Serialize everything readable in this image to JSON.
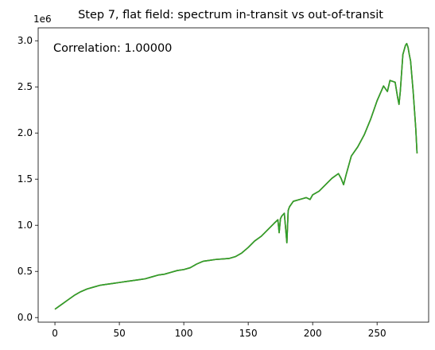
{
  "chart_data": {
    "type": "line",
    "title": "Step 7, flat field: spectrum in-transit vs out-of-transit",
    "xlabel": "",
    "ylabel": "",
    "y_offset_text": "1e6",
    "annotation": "Correlation: 1.00000",
    "xlim": [
      -13,
      290
    ],
    "ylim": [
      -0.05,
      3.14
    ],
    "x_ticks": [
      0,
      50,
      100,
      150,
      200,
      250
    ],
    "y_ticks": [
      0.0,
      0.5,
      1.0,
      1.5,
      2.0,
      2.5,
      3.0
    ],
    "x_tick_labels": [
      "0",
      "50",
      "100",
      "150",
      "200",
      "250"
    ],
    "y_tick_labels": [
      "0.0",
      "0.5",
      "1.0",
      "1.5",
      "2.0",
      "2.5",
      "3.0"
    ],
    "grid": false,
    "series": [
      {
        "color": "#1f77b4",
        "x": [
          0,
          5,
          10,
          15,
          20,
          25,
          30,
          35,
          40,
          45,
          50,
          55,
          60,
          65,
          70,
          75,
          80,
          85,
          90,
          95,
          100,
          105,
          110,
          115,
          120,
          125,
          130,
          135,
          140,
          145,
          150,
          155,
          160,
          165,
          170,
          173,
          174,
          175,
          176,
          178,
          180,
          181,
          182,
          185,
          190,
          195,
          198,
          200,
          205,
          210,
          215,
          220,
          222,
          224,
          226,
          228,
          230,
          235,
          240,
          245,
          250,
          255,
          258,
          260,
          262,
          264,
          266,
          267,
          268,
          270,
          272,
          273,
          274,
          275,
          276,
          278,
          280,
          281
        ],
        "y": [
          0.09,
          0.14,
          0.19,
          0.24,
          0.28,
          0.31,
          0.33,
          0.35,
          0.36,
          0.37,
          0.38,
          0.39,
          0.4,
          0.41,
          0.42,
          0.44,
          0.46,
          0.47,
          0.49,
          0.51,
          0.52,
          0.54,
          0.58,
          0.61,
          0.62,
          0.63,
          0.635,
          0.64,
          0.66,
          0.7,
          0.76,
          0.83,
          0.88,
          0.95,
          1.02,
          1.06,
          0.92,
          1.07,
          1.1,
          1.13,
          0.81,
          1.16,
          1.2,
          1.26,
          1.28,
          1.3,
          1.28,
          1.33,
          1.37,
          1.44,
          1.51,
          1.56,
          1.51,
          1.44,
          1.55,
          1.65,
          1.75,
          1.85,
          1.98,
          2.15,
          2.35,
          2.51,
          2.45,
          2.57,
          2.56,
          2.55,
          2.38,
          2.31,
          2.45,
          2.85,
          2.95,
          2.97,
          2.93,
          2.85,
          2.78,
          2.45,
          2.05,
          1.78
        ]
      },
      {
        "color": "#ff7f0e",
        "x": [
          0,
          5,
          10,
          15,
          20,
          25,
          30,
          35,
          40,
          45,
          50,
          55,
          60,
          65,
          70,
          75,
          80,
          85,
          90,
          95,
          100,
          105,
          110,
          115,
          120,
          125,
          130,
          135,
          140,
          145,
          150,
          155,
          160,
          165,
          170,
          173,
          174,
          175,
          176,
          178,
          180,
          181,
          182,
          185,
          190,
          195,
          198,
          200,
          205,
          210,
          215,
          220,
          222,
          224,
          226,
          228,
          230,
          235,
          240,
          245,
          250,
          255,
          258,
          260,
          262,
          264,
          266,
          267,
          268,
          270,
          272,
          273,
          274,
          275,
          276,
          278,
          280,
          281
        ],
        "y": [
          0.09,
          0.14,
          0.19,
          0.24,
          0.28,
          0.31,
          0.33,
          0.35,
          0.36,
          0.37,
          0.38,
          0.39,
          0.4,
          0.41,
          0.42,
          0.44,
          0.46,
          0.47,
          0.49,
          0.51,
          0.52,
          0.54,
          0.58,
          0.61,
          0.62,
          0.63,
          0.635,
          0.64,
          0.66,
          0.7,
          0.76,
          0.83,
          0.88,
          0.95,
          1.02,
          1.06,
          0.92,
          1.07,
          1.1,
          1.13,
          0.81,
          1.16,
          1.2,
          1.26,
          1.28,
          1.3,
          1.28,
          1.33,
          1.37,
          1.44,
          1.51,
          1.56,
          1.51,
          1.44,
          1.55,
          1.65,
          1.75,
          1.85,
          1.98,
          2.15,
          2.35,
          2.51,
          2.45,
          2.57,
          2.56,
          2.55,
          2.38,
          2.31,
          2.45,
          2.85,
          2.95,
          2.97,
          2.93,
          2.85,
          2.78,
          2.45,
          2.05,
          1.78
        ]
      },
      {
        "color": "#2ca02c",
        "x": [
          0,
          5,
          10,
          15,
          20,
          25,
          30,
          35,
          40,
          45,
          50,
          55,
          60,
          65,
          70,
          75,
          80,
          85,
          90,
          95,
          100,
          105,
          110,
          115,
          120,
          125,
          130,
          135,
          140,
          145,
          150,
          155,
          160,
          165,
          170,
          173,
          174,
          175,
          176,
          178,
          180,
          181,
          182,
          185,
          190,
          195,
          198,
          200,
          205,
          210,
          215,
          220,
          222,
          224,
          226,
          228,
          230,
          235,
          240,
          245,
          250,
          255,
          258,
          260,
          262,
          264,
          266,
          267,
          268,
          270,
          272,
          273,
          274,
          275,
          276,
          278,
          280,
          281
        ],
        "y": [
          0.09,
          0.14,
          0.19,
          0.24,
          0.28,
          0.31,
          0.33,
          0.35,
          0.36,
          0.37,
          0.38,
          0.39,
          0.4,
          0.41,
          0.42,
          0.44,
          0.46,
          0.47,
          0.49,
          0.51,
          0.52,
          0.54,
          0.58,
          0.61,
          0.62,
          0.63,
          0.635,
          0.64,
          0.66,
          0.7,
          0.76,
          0.83,
          0.88,
          0.95,
          1.02,
          1.06,
          0.92,
          1.07,
          1.1,
          1.13,
          0.81,
          1.16,
          1.2,
          1.26,
          1.28,
          1.3,
          1.28,
          1.33,
          1.37,
          1.44,
          1.51,
          1.56,
          1.51,
          1.44,
          1.55,
          1.65,
          1.75,
          1.85,
          1.98,
          2.15,
          2.35,
          2.51,
          2.45,
          2.57,
          2.56,
          2.55,
          2.38,
          2.31,
          2.45,
          2.85,
          2.95,
          2.97,
          2.93,
          2.85,
          2.78,
          2.45,
          2.05,
          1.78
        ]
      }
    ]
  }
}
